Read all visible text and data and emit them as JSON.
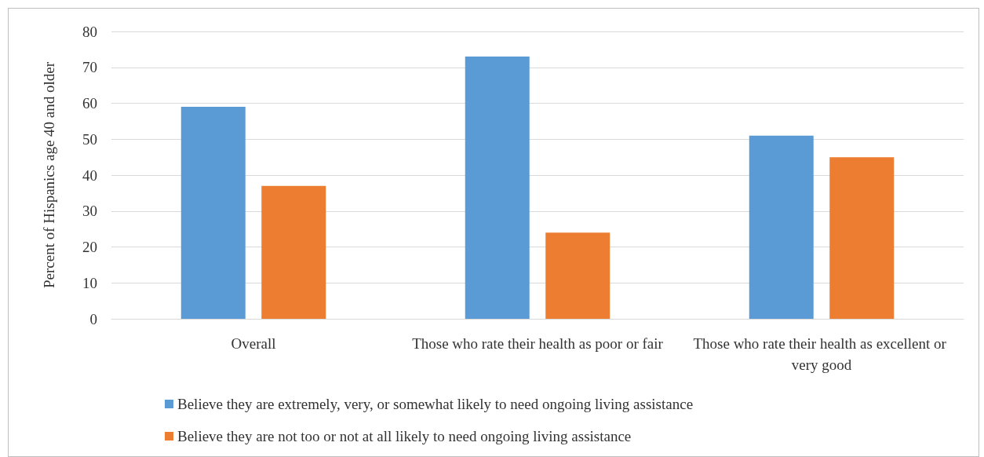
{
  "chart_data": {
    "type": "bar",
    "ylabel": "Percent of Hispanics age 40 and older",
    "categories": [
      "Overall",
      "Those who rate their health as poor or fair",
      "Those who rate their health as excellent or very good"
    ],
    "series": [
      {
        "name": "Believe they are extremely, very, or somewhat likely to need ongoing living assistance",
        "color": "#5b9bd5",
        "values": [
          59,
          73,
          51
        ]
      },
      {
        "name": "Believe they are not too or not at all likely to need ongoing living assistance",
        "color": "#ed7d31",
        "values": [
          37,
          24,
          45
        ]
      }
    ],
    "ylim": [
      0,
      80
    ],
    "yticks": [
      0,
      10,
      20,
      30,
      40,
      50,
      60,
      70,
      80
    ],
    "grid": "y",
    "legend": "bottom"
  }
}
